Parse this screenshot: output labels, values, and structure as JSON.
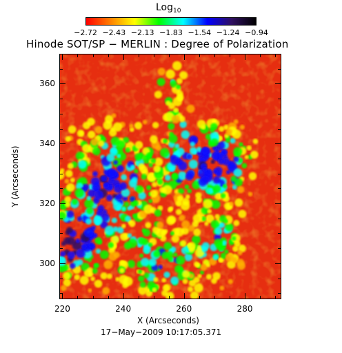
{
  "colorbar": {
    "title": "Log",
    "title_sub": "10",
    "ticks": [
      "−2.72",
      "−2.43",
      "−2.13",
      "−1.83",
      "−1.54",
      "−1.24",
      "−0.94"
    ],
    "colors": [
      "#ff0000",
      "#ff8000",
      "#ffff00",
      "#00ff00",
      "#00ffff",
      "#0000ff",
      "#301060",
      "#000000"
    ]
  },
  "title": "Hinode SOT/SP − MERLIN : Degree of Polarization",
  "axes": {
    "xlabel": "X (Arcseconds)",
    "ylabel": "Y (Arcseconds)",
    "xticks": [
      "220",
      "240",
      "260",
      "280"
    ],
    "yticks": [
      "300",
      "320",
      "340",
      "360"
    ],
    "xlim": [
      219,
      292
    ],
    "ylim": [
      288,
      370
    ]
  },
  "timestamp": "17−May−2009 10:17:05.371"
}
